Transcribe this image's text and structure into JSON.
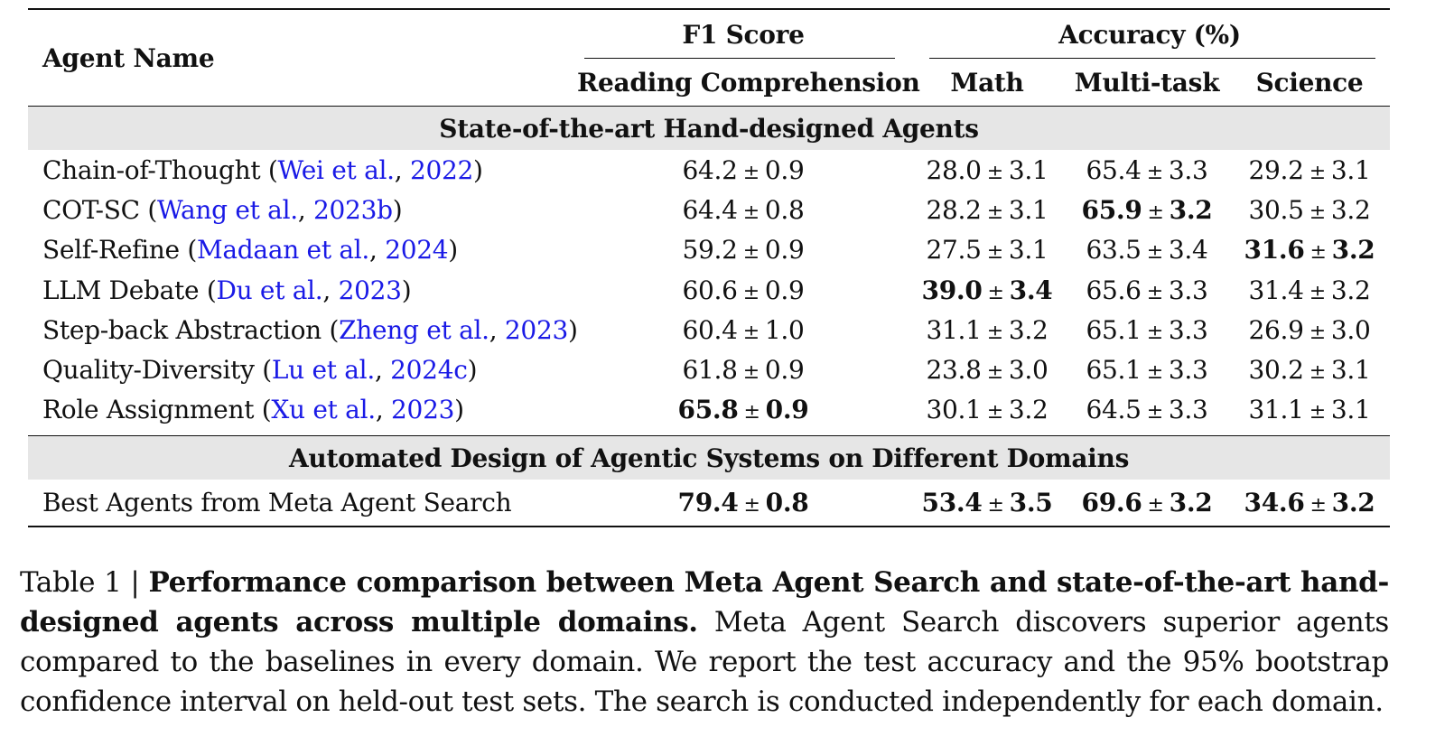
{
  "table": {
    "header": {
      "agent_name": "Agent Name",
      "f1_group": "F1 Score",
      "accuracy_group": "Accuracy (%)",
      "columns": [
        "Reading Comprehension",
        "Math",
        "Multi-task",
        "Science"
      ]
    },
    "sections": [
      {
        "title": "State-of-the-art Hand-designed Agents",
        "rows": [
          {
            "name": "Chain-of-Thought",
            "cite_open": " (",
            "cite_author": "Wei et al.",
            "cite_sep": ", ",
            "cite_year": "2022",
            "cite_close": ")",
            "values": [
              {
                "mean": "64.2",
                "ci": "0.9",
                "bold": false
              },
              {
                "mean": "28.0",
                "ci": "3.1",
                "bold": false
              },
              {
                "mean": "65.4",
                "ci": "3.3",
                "bold": false
              },
              {
                "mean": "29.2",
                "ci": "3.1",
                "bold": false
              }
            ]
          },
          {
            "name": "COT-SC",
            "cite_open": " (",
            "cite_author": "Wang et al.",
            "cite_sep": ", ",
            "cite_year": "2023b",
            "cite_close": ")",
            "values": [
              {
                "mean": "64.4",
                "ci": "0.8",
                "bold": false
              },
              {
                "mean": "28.2",
                "ci": "3.1",
                "bold": false
              },
              {
                "mean": "65.9",
                "ci": "3.2",
                "bold": true
              },
              {
                "mean": "30.5",
                "ci": "3.2",
                "bold": false
              }
            ]
          },
          {
            "name": "Self-Refine",
            "cite_open": " (",
            "cite_author": "Madaan et al.",
            "cite_sep": ", ",
            "cite_year": "2024",
            "cite_close": ")",
            "values": [
              {
                "mean": "59.2",
                "ci": "0.9",
                "bold": false
              },
              {
                "mean": "27.5",
                "ci": "3.1",
                "bold": false
              },
              {
                "mean": "63.5",
                "ci": "3.4",
                "bold": false
              },
              {
                "mean": "31.6",
                "ci": "3.2",
                "bold": true
              }
            ]
          },
          {
            "name": "LLM Debate",
            "cite_open": " (",
            "cite_author": "Du et al.",
            "cite_sep": ", ",
            "cite_year": "2023",
            "cite_close": ")",
            "values": [
              {
                "mean": "60.6",
                "ci": "0.9",
                "bold": false
              },
              {
                "mean": "39.0",
                "ci": "3.4",
                "bold": true
              },
              {
                "mean": "65.6",
                "ci": "3.3",
                "bold": false
              },
              {
                "mean": "31.4",
                "ci": "3.2",
                "bold": false
              }
            ]
          },
          {
            "name": "Step-back Abstraction",
            "cite_open": " (",
            "cite_author": "Zheng et al.",
            "cite_sep": ", ",
            "cite_year": "2023",
            "cite_close": ")",
            "values": [
              {
                "mean": "60.4",
                "ci": "1.0",
                "bold": false
              },
              {
                "mean": "31.1",
                "ci": "3.2",
                "bold": false
              },
              {
                "mean": "65.1",
                "ci": "3.3",
                "bold": false
              },
              {
                "mean": "26.9",
                "ci": "3.0",
                "bold": false
              }
            ]
          },
          {
            "name": "Quality-Diversity",
            "cite_open": " (",
            "cite_author": "Lu et al.",
            "cite_sep": ", ",
            "cite_year": "2024c",
            "cite_close": ")",
            "values": [
              {
                "mean": "61.8",
                "ci": "0.9",
                "bold": false
              },
              {
                "mean": "23.8",
                "ci": "3.0",
                "bold": false
              },
              {
                "mean": "65.1",
                "ci": "3.3",
                "bold": false
              },
              {
                "mean": "30.2",
                "ci": "3.1",
                "bold": false
              }
            ]
          },
          {
            "name": "Role Assignment",
            "cite_open": " (",
            "cite_author": "Xu et al.",
            "cite_sep": ", ",
            "cite_year": "2023",
            "cite_close": ")",
            "values": [
              {
                "mean": "65.8",
                "ci": "0.9",
                "bold": true
              },
              {
                "mean": "30.1",
                "ci": "3.2",
                "bold": false
              },
              {
                "mean": "64.5",
                "ci": "3.3",
                "bold": false
              },
              {
                "mean": "31.1",
                "ci": "3.1",
                "bold": false
              }
            ]
          }
        ]
      },
      {
        "title": "Automated Design of Agentic Systems on Different Domains",
        "rows": [
          {
            "name": "Best Agents from Meta Agent Search",
            "cite_open": "",
            "cite_author": "",
            "cite_sep": "",
            "cite_year": "",
            "cite_close": "",
            "values": [
              {
                "mean": "79.4",
                "ci": "0.8",
                "bold": true
              },
              {
                "mean": "53.4",
                "ci": "3.5",
                "bold": true
              },
              {
                "mean": "69.6",
                "ci": "3.2",
                "bold": true
              },
              {
                "mean": "34.6",
                "ci": "3.2",
                "bold": true
              }
            ]
          }
        ]
      }
    ],
    "pm_symbol": "±"
  },
  "caption": {
    "label": "Table 1 | ",
    "bold_text": "Performance comparison between Meta Agent Search and state-of-the-art hand-designed agents across multiple domains.",
    "body_text": " Meta Agent Search discovers superior agents compared to the baselines in every domain. We report the test accuracy and the 95% bootstrap confidence interval on held-out test sets. The search is conducted independently for each domain."
  }
}
